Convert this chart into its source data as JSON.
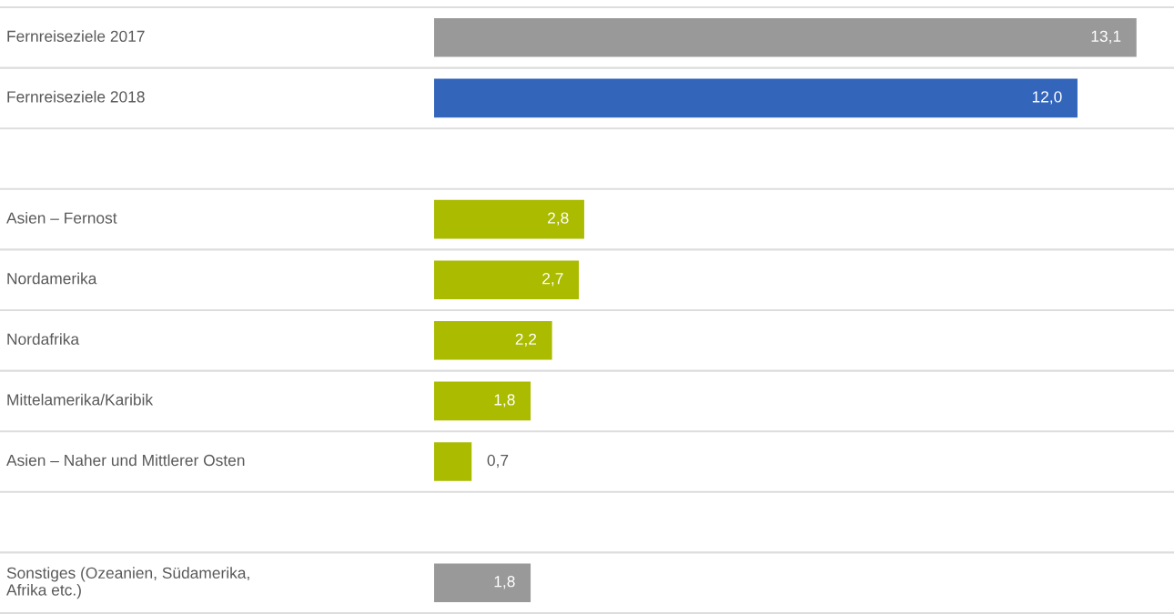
{
  "chart_data": {
    "type": "bar",
    "orientation": "horizontal",
    "categories": [
      "Fernreiseziele 2017",
      "Fernreiseziele 2018",
      null,
      "Asien – Fernost",
      "Nordamerika",
      "Nordafrika",
      "Mittelamerika/Karibik",
      "Asien – Naher und Mittlerer Osten",
      null,
      "Sonstiges (Ozeanien, Südamerika,\nAfrika etc.)"
    ],
    "values": [
      13.1,
      12.0,
      null,
      2.8,
      2.7,
      2.2,
      1.8,
      0.7,
      null,
      1.8
    ],
    "value_labels": [
      "13,1",
      "12,0",
      null,
      "2,8",
      "2,7",
      "2,2",
      "1,8",
      "0,7",
      null,
      "1,8"
    ],
    "colors": [
      "#999999",
      "#3366bb",
      null,
      "#aabb00",
      "#aabb00",
      "#aabb00",
      "#aabb00",
      "#aabb00",
      null,
      "#999999"
    ],
    "xlim": [
      0,
      13.8
    ],
    "tick_labels": "y"
  }
}
